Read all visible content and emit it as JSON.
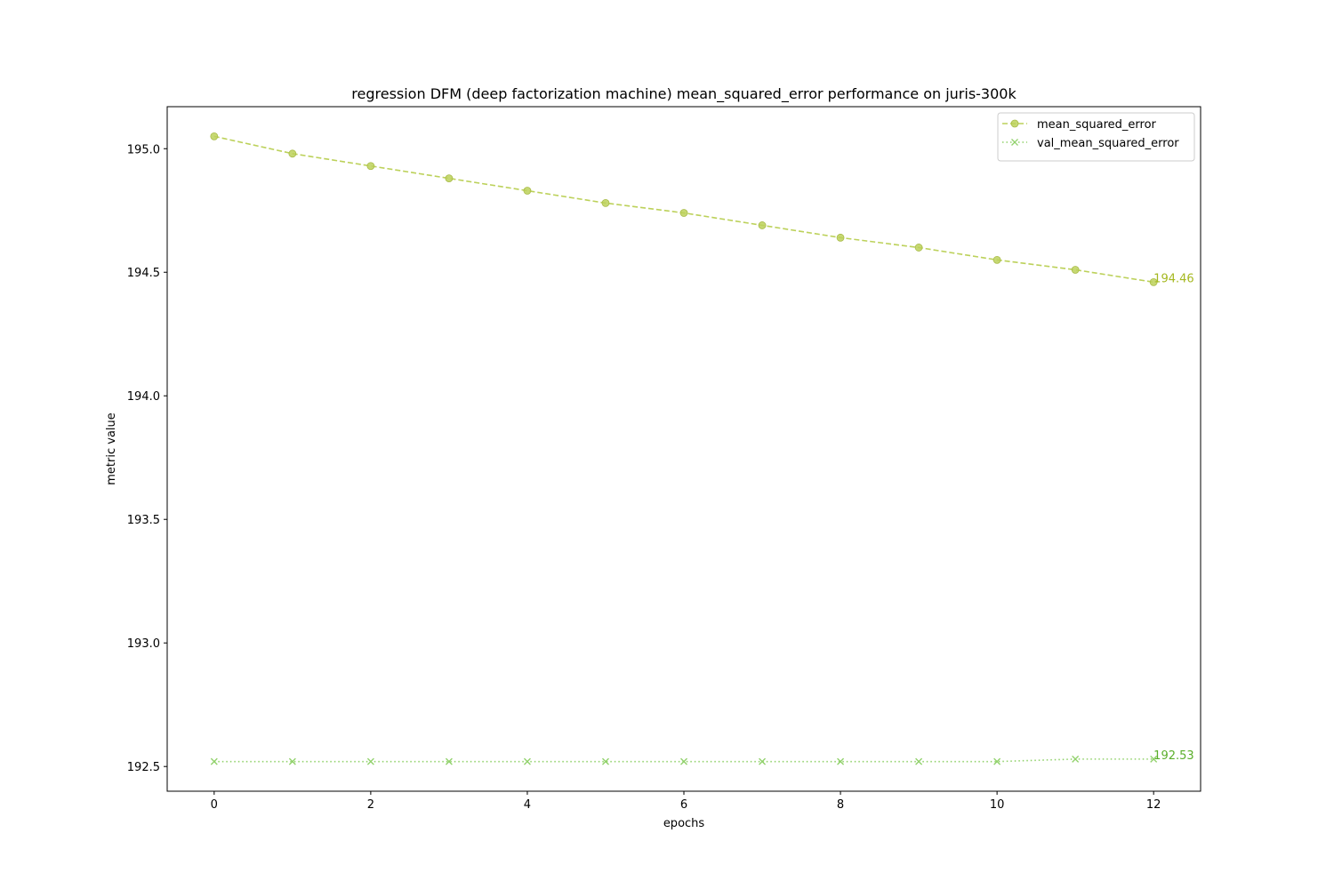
{
  "chart_data": {
    "type": "line",
    "title": "regression DFM (deep factorization machine) mean_squared_error performance on juris-300k",
    "xlabel": "epochs",
    "ylabel": "metric value",
    "xlim": [
      -0.6,
      12.6
    ],
    "ylim": [
      192.4,
      195.17
    ],
    "xticks": [
      0,
      2,
      4,
      6,
      8,
      10,
      12
    ],
    "yticks": [
      192.5,
      193.0,
      193.5,
      194.0,
      194.5,
      195.0
    ],
    "ytick_labels": [
      "192.5",
      "193.0",
      "193.5",
      "194.0",
      "194.5",
      "195.0"
    ],
    "grid": false,
    "legend_position": "top-right",
    "x": [
      0,
      1,
      2,
      3,
      4,
      5,
      6,
      7,
      8,
      9,
      10,
      11,
      12
    ],
    "series": [
      {
        "name": "mean_squared_error",
        "values": [
          195.05,
          194.98,
          194.93,
          194.88,
          194.83,
          194.78,
          194.74,
          194.69,
          194.64,
          194.6,
          194.55,
          194.51,
          194.46
        ],
        "color": "#bcd15a",
        "line_style": "dashed",
        "marker": "circle",
        "end_label": "194.46",
        "end_label_color": "#a5b820"
      },
      {
        "name": "val_mean_squared_error",
        "values": [
          192.52,
          192.52,
          192.52,
          192.52,
          192.52,
          192.52,
          192.52,
          192.52,
          192.52,
          192.52,
          192.52,
          192.53,
          192.53
        ],
        "color": "#90d16a",
        "line_style": "dotted",
        "marker": "x",
        "end_label": "192.53",
        "end_label_color": "#5aae2a"
      }
    ]
  }
}
